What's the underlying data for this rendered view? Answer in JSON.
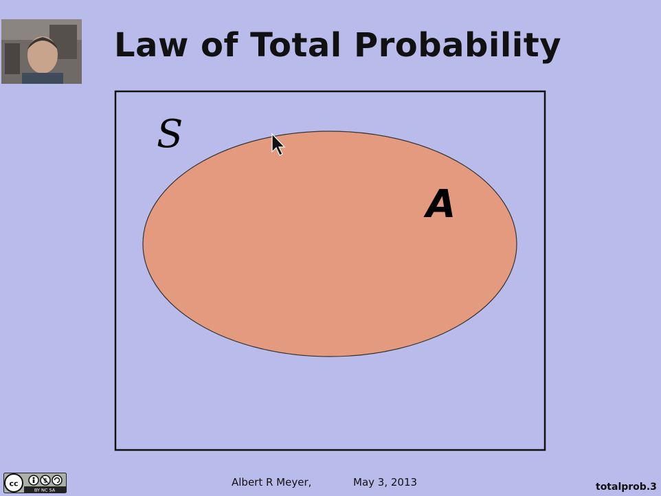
{
  "slide": {
    "title": "Law of Total Probability",
    "sample_space_label": "S",
    "event_label": "A"
  },
  "footer": {
    "author": "Albert R Meyer,",
    "date": "May 3, 2013",
    "slide_id": "totalprob.3"
  },
  "colors": {
    "background": "#b9bbea",
    "event_fill": "#e39a7e",
    "outline": "#111111"
  },
  "license_badge": {
    "icon": "creative-commons-by-nc-sa-icon",
    "text": "BY NC SA"
  }
}
